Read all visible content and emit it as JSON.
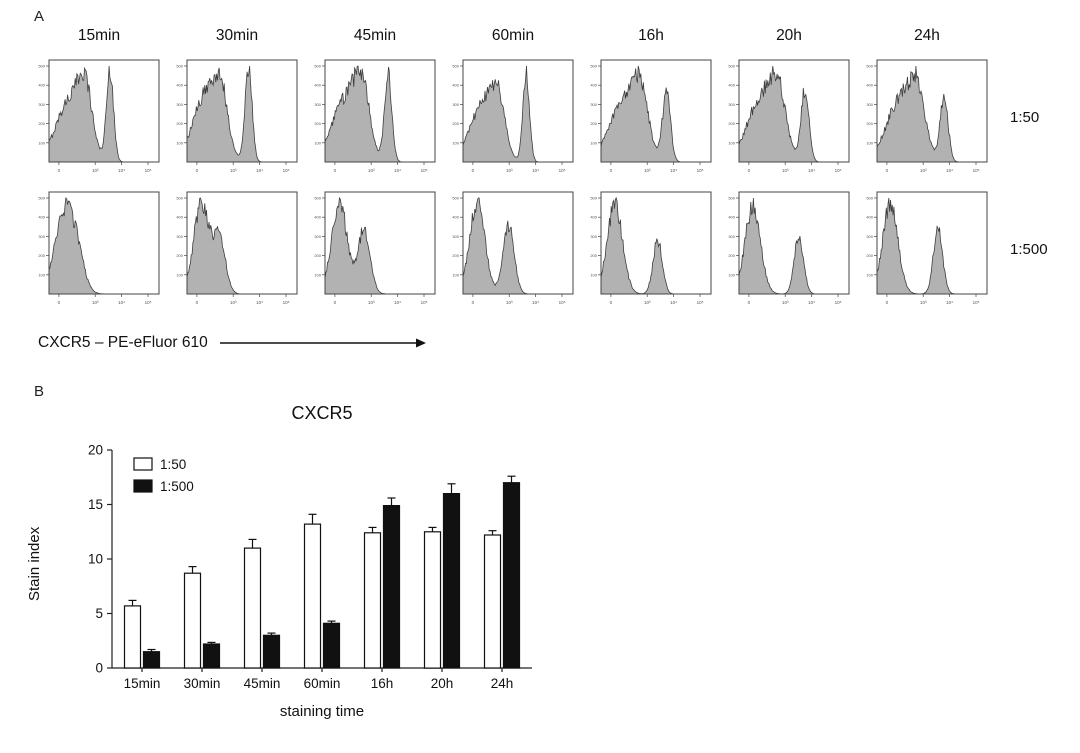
{
  "figure": {
    "panelA": {
      "label": "A",
      "columns": [
        "15min",
        "30min",
        "45min",
        "60min",
        "16h",
        "20h",
        "24h"
      ],
      "row_labels": [
        "1:50",
        "1:500"
      ],
      "x_axis_label": "CXCR5 – PE-eFluor 610",
      "x_ticks": [
        "0",
        "10³",
        "10⁴",
        "10⁵"
      ],
      "y_ticks": [
        "100",
        "200",
        "300",
        "400",
        "500"
      ],
      "histogram_fill": "#b2b2b2",
      "histogram_stroke": "#3d3d3d",
      "histograms": {
        "row1": [
          [
            [
              0.2,
              0.13,
              0.7
            ],
            [
              0.33,
              0.06,
              0.55
            ],
            [
              0.555,
              0.032,
              1.0
            ]
          ],
          [
            [
              0.18,
              0.12,
              0.72
            ],
            [
              0.31,
              0.06,
              0.5
            ],
            [
              0.56,
              0.032,
              1.0
            ]
          ],
          [
            [
              0.2,
              0.13,
              0.75
            ],
            [
              0.34,
              0.065,
              0.6
            ],
            [
              0.575,
              0.033,
              1.0
            ]
          ],
          [
            [
              0.19,
              0.12,
              0.68
            ],
            [
              0.32,
              0.06,
              0.5
            ],
            [
              0.575,
              0.03,
              1.0
            ]
          ],
          [
            [
              0.21,
              0.13,
              0.82
            ],
            [
              0.36,
              0.07,
              0.72
            ],
            [
              0.595,
              0.036,
              0.95
            ]
          ],
          [
            [
              0.21,
              0.13,
              0.88
            ],
            [
              0.36,
              0.07,
              0.68
            ],
            [
              0.6,
              0.036,
              0.97
            ]
          ],
          [
            [
              0.22,
              0.13,
              0.9
            ],
            [
              0.37,
              0.07,
              0.72
            ],
            [
              0.61,
              0.036,
              0.94
            ]
          ]
        ],
        "row2": [
          [
            [
              0.13,
              0.085,
              1.0
            ],
            [
              0.25,
              0.07,
              0.45
            ]
          ],
          [
            [
              0.13,
              0.07,
              1.0
            ],
            [
              0.295,
              0.055,
              0.6
            ]
          ],
          [
            [
              0.13,
              0.07,
              1.0
            ],
            [
              0.355,
              0.055,
              0.7
            ]
          ],
          [
            [
              0.13,
              0.07,
              1.0
            ],
            [
              0.415,
              0.05,
              0.76
            ]
          ],
          [
            [
              0.125,
              0.07,
              1.0
            ],
            [
              0.515,
              0.042,
              0.6
            ]
          ],
          [
            [
              0.125,
              0.07,
              1.0
            ],
            [
              0.545,
              0.042,
              0.66
            ]
          ],
          [
            [
              0.12,
              0.07,
              1.0
            ],
            [
              0.555,
              0.042,
              0.74
            ]
          ]
        ]
      }
    },
    "panelB": {
      "label": "B"
    }
  },
  "chart_data": {
    "type": "bar",
    "title": "CXCR5",
    "categories": [
      "15min",
      "30min",
      "45min",
      "60min",
      "16h",
      "20h",
      "24h"
    ],
    "series": [
      {
        "name": "1:50",
        "fill": "#ffffff",
        "values": [
          5.7,
          8.7,
          11.0,
          13.2,
          12.4,
          12.5,
          12.2
        ],
        "errors": [
          0.5,
          0.6,
          0.8,
          0.9,
          0.5,
          0.4,
          0.4
        ]
      },
      {
        "name": "1:500",
        "fill": "#111111",
        "values": [
          1.5,
          2.2,
          3.0,
          4.1,
          14.9,
          16.0,
          17.0
        ],
        "errors": [
          0.2,
          0.15,
          0.2,
          0.2,
          0.7,
          0.9,
          0.6
        ]
      }
    ],
    "ylabel": "Stain index",
    "xlabel": "staining time",
    "ylim": [
      0,
      20
    ],
    "yticks": [
      0,
      5,
      10,
      15,
      20
    ],
    "legend_position": "top-left",
    "grid": false
  }
}
